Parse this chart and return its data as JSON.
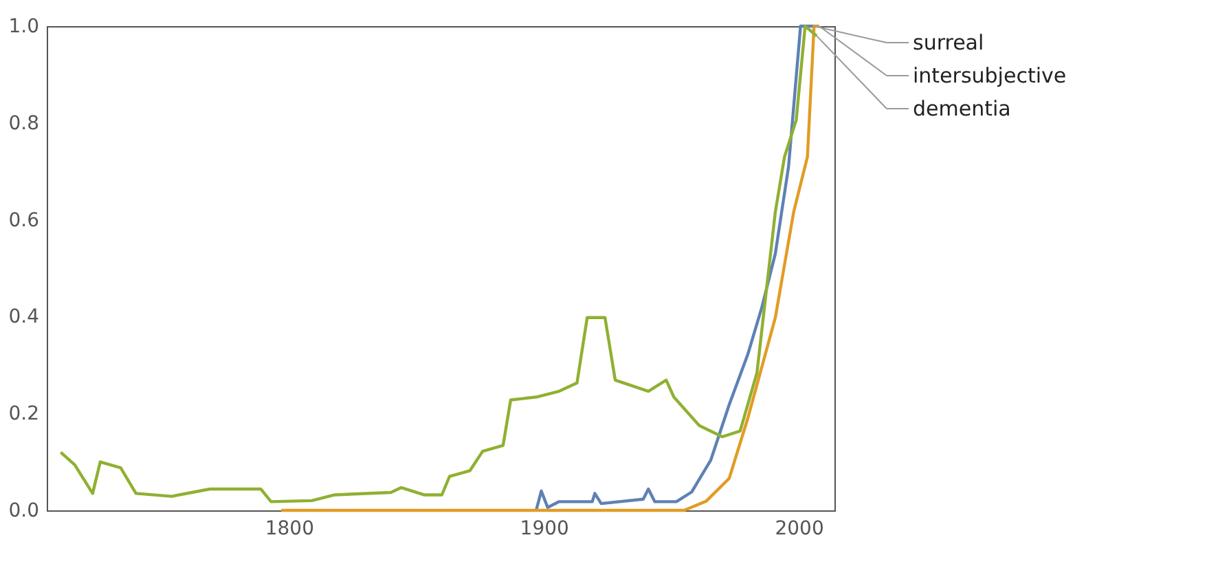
{
  "chart_data": {
    "type": "line",
    "xlim": [
      1705,
      2014
    ],
    "xticks": [
      1800,
      1900,
      2000
    ],
    "ylim": [
      0,
      1
    ],
    "yticks": [
      {
        "value": 0,
        "label": "0.0"
      },
      0.2,
      0.4,
      0.6,
      0.8,
      {
        "value": 1,
        "label": "1.0"
      }
    ],
    "grid": false,
    "legend": "right",
    "marker": "none",
    "line_style": "solid",
    "series": [
      {
        "name": "surreal",
        "color": "#5e81b5",
        "x": [
          1897,
          1899,
          1901.5,
          1906,
          1919,
          1920,
          1922.5,
          1939,
          1941,
          1943.5,
          1952,
          1958,
          1965.5,
          1972.7,
          1980,
          1985.4,
          1990.8,
          1996,
          2000.7,
          2006
        ],
        "values": [
          0,
          0.04,
          0.006,
          0.018,
          0.018,
          0.035,
          0.014,
          0.023,
          0.044,
          0.018,
          0.018,
          0.038,
          0.104,
          0.218,
          0.322,
          0.417,
          0.53,
          0.71,
          1.0,
          1.0
        ]
      },
      {
        "name": "intersubjective",
        "color": "#e19c24",
        "x": [
          1797,
          1955,
          1963.7,
          1972.7,
          1980,
          1990.8,
          1998,
          2003.4,
          2006,
          2008
        ],
        "values": [
          0,
          0,
          0.019,
          0.066,
          0.19,
          0.398,
          0.616,
          0.73,
          1.0,
          1.0
        ]
      },
      {
        "name": "dementia",
        "color": "#8fb032",
        "x": [
          1710.5,
          1716,
          1723,
          1726,
          1734,
          1740,
          1754,
          1769,
          1789,
          1793,
          1809,
          1818,
          1840,
          1844,
          1853,
          1860,
          1863,
          1871,
          1876,
          1884,
          1887,
          1897,
          1906,
          1913,
          1917,
          1924,
          1928,
          1941,
          1948,
          1951,
          1961,
          1970,
          1977,
          1983.6,
          1990.8,
          1994.4,
          1999,
          2002.5,
          2007
        ],
        "values": [
          0.12,
          0.094,
          0.035,
          0.1,
          0.088,
          0.035,
          0.029,
          0.044,
          0.044,
          0.018,
          0.02,
          0.032,
          0.037,
          0.047,
          0.032,
          0.032,
          0.07,
          0.082,
          0.122,
          0.134,
          0.228,
          0.234,
          0.246,
          0.263,
          0.398,
          0.398,
          0.269,
          0.246,
          0.269,
          0.234,
          0.175,
          0.152,
          0.164,
          0.284,
          0.616,
          0.73,
          0.806,
          1.0,
          0.98
        ]
      }
    ]
  }
}
